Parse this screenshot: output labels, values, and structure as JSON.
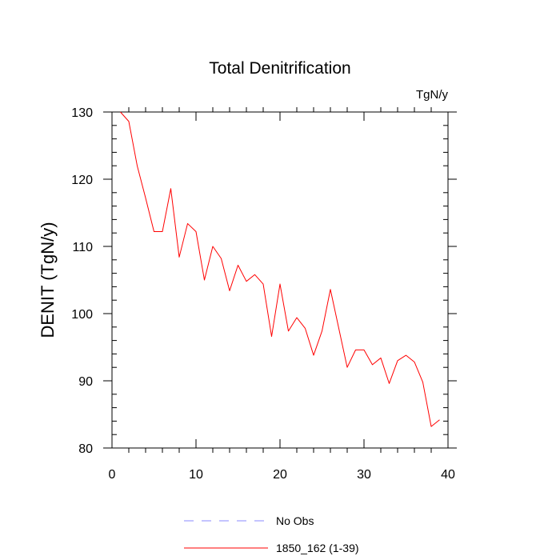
{
  "chart_data": {
    "type": "line",
    "title": "Total Denitrification",
    "units_label": "TgN/y",
    "xlabel": "",
    "ylabel": "DENIT  (TgN/y)",
    "xlim": [
      0,
      40
    ],
    "ylim": [
      80,
      130
    ],
    "x_ticks": [
      0,
      10,
      20,
      30,
      40
    ],
    "y_ticks": [
      80,
      90,
      100,
      110,
      120,
      130
    ],
    "x_tick_labels": [
      "0",
      "10",
      "20",
      "30",
      "40"
    ],
    "y_tick_labels": [
      "80",
      "90",
      "100",
      "110",
      "120",
      "130"
    ],
    "x_minor_step": 2,
    "y_minor_step": 2,
    "series": [
      {
        "name": "1850_162 (1-39)",
        "color": "#ff0000",
        "style": "solid",
        "x": [
          1,
          2,
          3,
          4,
          5,
          6,
          7,
          8,
          9,
          10,
          11,
          12,
          13,
          14,
          15,
          16,
          17,
          18,
          19,
          20,
          21,
          22,
          23,
          24,
          25,
          26,
          27,
          28,
          29,
          30,
          31,
          32,
          33,
          34,
          35,
          36,
          37,
          38,
          39
        ],
        "values": [
          130.0,
          128.6,
          122.0,
          117.2,
          112.2,
          112.2,
          118.6,
          108.4,
          113.4,
          112.2,
          105.0,
          110.0,
          108.2,
          103.4,
          107.2,
          104.8,
          105.8,
          104.4,
          96.6,
          104.4,
          97.4,
          99.4,
          97.8,
          93.8,
          97.4,
          103.6,
          97.8,
          92.0,
          94.6,
          94.6,
          92.4,
          93.4,
          89.6,
          93.0,
          93.8,
          92.8,
          89.8,
          83.2,
          84.2
        ]
      }
    ],
    "legend": [
      {
        "label": "No Obs",
        "color": "#8888ff",
        "style": "dashed"
      },
      {
        "label": "1850_162 (1-39)",
        "color": "#ff0000",
        "style": "solid"
      }
    ]
  }
}
